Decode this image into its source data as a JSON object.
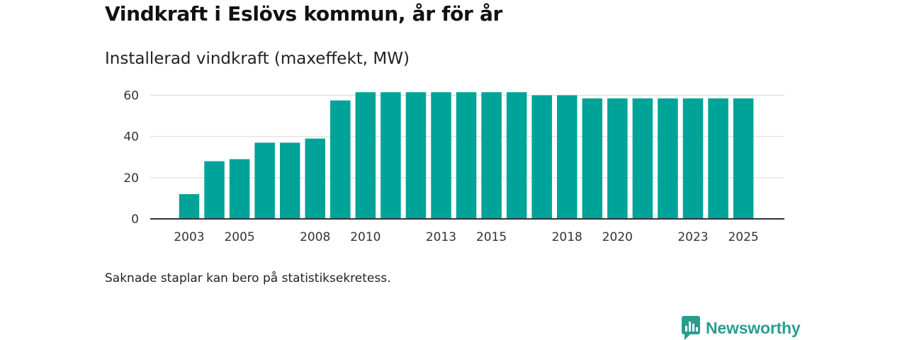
{
  "title": "Vindkraft i Eslövs kommun, år för år",
  "subtitle": "Installerad vindkraft (maxeffekt, MW)",
  "footnote": "Saknade staplar kan bero på statistiksekretess.",
  "brand": {
    "name": "Newsworthy",
    "icon": "newsworthy-logo-icon",
    "color": "#2a9d8f"
  },
  "chart_data": {
    "type": "bar",
    "title": "Vindkraft i Eslövs kommun, år för år",
    "subtitle": "Installerad vindkraft (maxeffekt, MW)",
    "xlabel": "",
    "ylabel": "MW",
    "categories": [
      2002,
      2003,
      2004,
      2005,
      2006,
      2007,
      2008,
      2009,
      2010,
      2011,
      2012,
      2013,
      2014,
      2015,
      2016,
      2017,
      2018,
      2019,
      2020,
      2021,
      2022,
      2023,
      2024,
      2025
    ],
    "values": [
      null,
      12,
      28,
      29,
      37,
      37,
      39,
      57.5,
      61.5,
      61.5,
      61.5,
      61.5,
      61.5,
      61.5,
      61.5,
      60,
      60,
      58.5,
      58.5,
      58.5,
      58.5,
      58.5,
      58.5,
      58.5
    ],
    "x_tick_labels": [
      "2003",
      "2005",
      "2008",
      "2010",
      "2013",
      "2015",
      "2018",
      "2020",
      "2023",
      "2025"
    ],
    "y_ticks": [
      0,
      20,
      40,
      60
    ],
    "ylim": [
      0,
      65
    ],
    "grid": true,
    "bar_color": "#00a398"
  }
}
